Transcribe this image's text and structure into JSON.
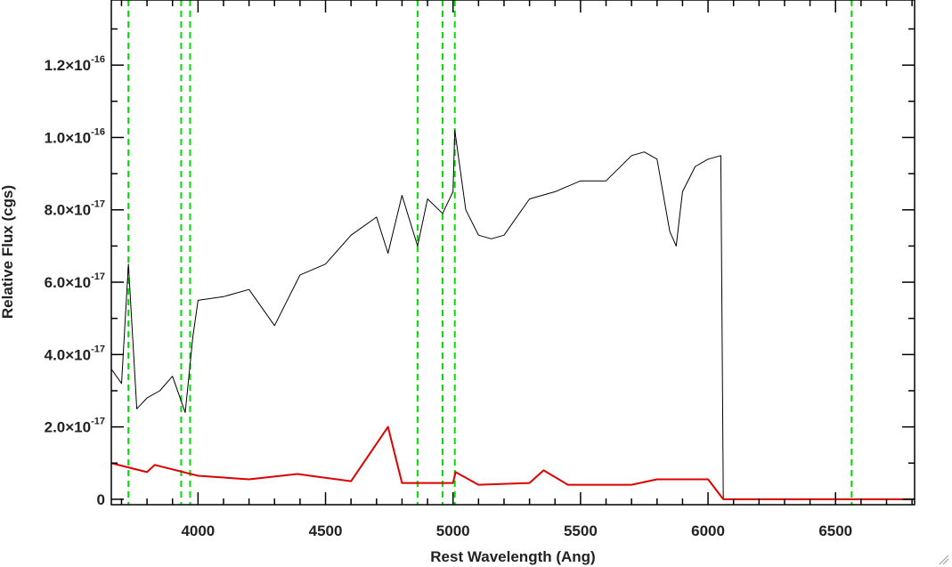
{
  "chart_data": {
    "type": "line",
    "xlabel": "Rest Wavelength (Ang)",
    "ylabel": "Relative Flux (cgs)",
    "xlim": [
      3660,
      6810
    ],
    "ylim": [
      -1.5e-18,
      1.38e-16
    ],
    "x_ticks": [
      {
        "value": 4000,
        "label": "4000"
      },
      {
        "value": 4500,
        "label": "4500"
      },
      {
        "value": 5000,
        "label": "5000"
      },
      {
        "value": 5500,
        "label": "5500"
      },
      {
        "value": 6000,
        "label": "6000"
      },
      {
        "value": 6500,
        "label": "6500"
      }
    ],
    "y_ticks": [
      {
        "value": 0,
        "mantissa": "0",
        "exponent": ""
      },
      {
        "value": 2e-17,
        "mantissa": "2.0×10",
        "exponent": "-17"
      },
      {
        "value": 4e-17,
        "mantissa": "4.0×10",
        "exponent": "-17"
      },
      {
        "value": 6e-17,
        "mantissa": "6.0×10",
        "exponent": "-17"
      },
      {
        "value": 8e-17,
        "mantissa": "8.0×10",
        "exponent": "-17"
      },
      {
        "value": 1e-16,
        "mantissa": "1.0×10",
        "exponent": "-16"
      },
      {
        "value": 1.2e-16,
        "mantissa": "1.2×10",
        "exponent": "-16"
      }
    ],
    "grid": false,
    "reference_lines": {
      "color": "#00dd00",
      "style": "dashed",
      "x": [
        3727,
        3934,
        3969,
        4861,
        4959,
        5007,
        6563
      ]
    },
    "series": [
      {
        "color": "#000000",
        "x": [
          3660,
          3700,
          3727,
          3760,
          3800,
          3850,
          3900,
          3950,
          3980,
          4000,
          4100,
          4200,
          4300,
          4400,
          4500,
          4600,
          4700,
          4745,
          4800,
          4861,
          4900,
          4959,
          5000,
          5007,
          5050,
          5100,
          5150,
          5200,
          5300,
          5400,
          5500,
          5600,
          5700,
          5750,
          5800,
          5850,
          5875,
          5900,
          5950,
          6000,
          6050,
          6060
        ],
        "y": [
          3.6e-17,
          3.2e-17,
          6.5e-17,
          2.5e-17,
          2.8e-17,
          3e-17,
          3.4e-17,
          2.4e-17,
          4.5e-17,
          5.5e-17,
          5.6e-17,
          5.8e-17,
          4.8e-17,
          6.2e-17,
          6.5e-17,
          7.3e-17,
          7.8e-17,
          6.8e-17,
          8.4e-17,
          7e-17,
          8.3e-17,
          7.9e-17,
          8.5e-17,
          1.02e-16,
          8e-17,
          7.3e-17,
          7.2e-17,
          7.3e-17,
          8.3e-17,
          8.5e-17,
          8.8e-17,
          8.8e-17,
          9.5e-17,
          9.6e-17,
          9.4e-17,
          7.4e-17,
          7e-17,
          8.5e-17,
          9.2e-17,
          9.4e-17,
          9.5e-17,
          0
        ]
      },
      {
        "color": "#dd0000",
        "x": [
          3660,
          3800,
          3830,
          4000,
          4200,
          4390,
          4440,
          4600,
          4745,
          4800,
          5000,
          5010,
          5100,
          5300,
          5355,
          5450,
          5700,
          5800,
          6000,
          6060,
          6810
        ],
        "y": [
          1e-17,
          7.5e-18,
          9.5e-18,
          6.5e-18,
          5.5e-18,
          7e-18,
          6.5e-18,
          5e-18,
          2e-17,
          4.5e-18,
          4.5e-18,
          7.5e-18,
          4e-18,
          4.5e-18,
          8e-18,
          4e-18,
          4e-18,
          5.5e-18,
          5.5e-18,
          0,
          0
        ]
      }
    ]
  }
}
